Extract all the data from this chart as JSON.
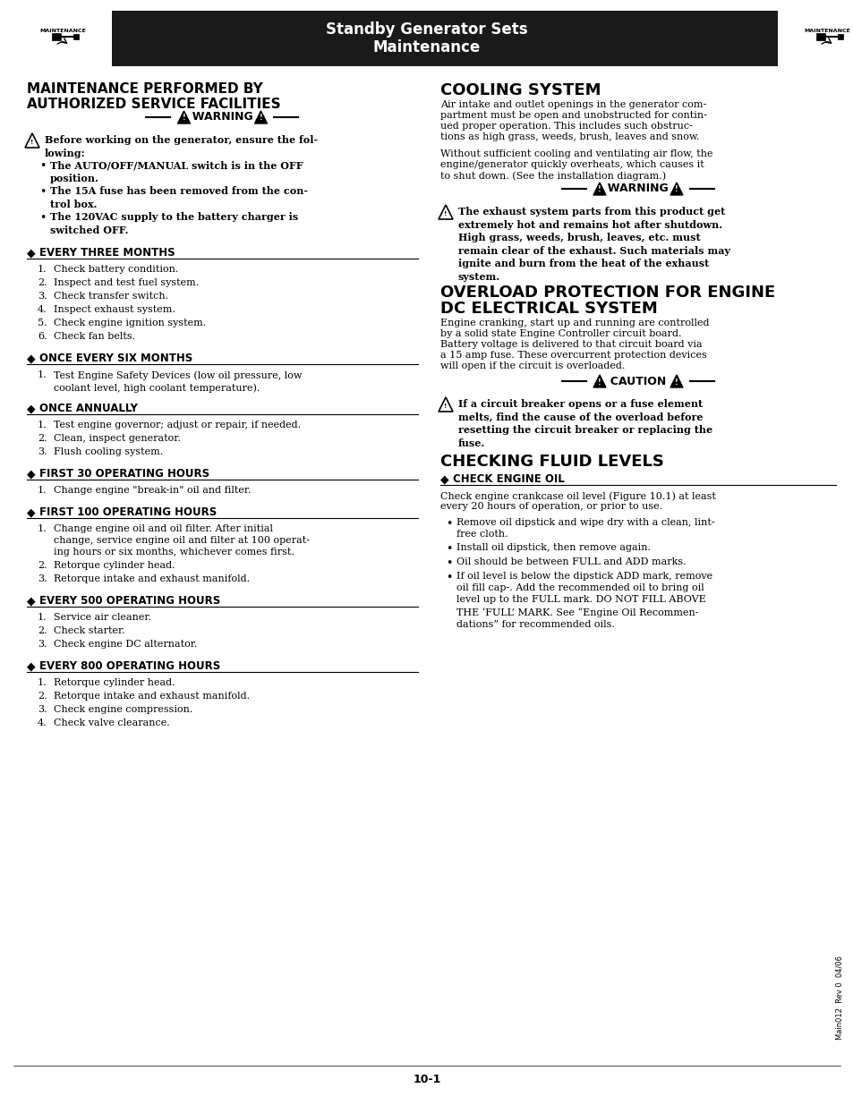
{
  "bg_color": "#ffffff",
  "header_bg": "#1a1a1a",
  "header_text_color": "#ffffff",
  "header_title1": "Standby Generator Sets",
  "header_title2": "Maintenance",
  "page_num": "10-1",
  "footer_right": "Main012  Rev 0  04/06",
  "warning_bullets": [
    "The AUTO/OFF/MANUAL switch is in the OFF\nposition.",
    "The 15A fuse has been removed from the con-\ntrol box.",
    "The 120VAC supply to the battery charger is\nswitched OFF."
  ],
  "sections_left": [
    {
      "title": "EVERY THREE MONTHS",
      "items": [
        "Check battery condition.",
        "Inspect and test fuel system.",
        "Check transfer switch.",
        "Inspect exhaust system.",
        "Check engine ignition system.",
        "Check fan belts."
      ]
    },
    {
      "title": "ONCE EVERY SIX MONTHS",
      "items": [
        "Test Engine Safety Devices (low oil pressure, low\ncoolant level, high coolant temperature)."
      ]
    },
    {
      "title": "ONCE ANNUALLY",
      "items": [
        "Test engine governor; adjust or repair, if needed.",
        "Clean, inspect generator.",
        "Flush cooling system."
      ]
    },
    {
      "title": "FIRST 30 OPERATING HOURS",
      "items": [
        "Change engine \"break-in\" oil and filter."
      ]
    },
    {
      "title": "FIRST 100 OPERATING HOURS",
      "items": [
        "Change engine oil and oil filter. After initial\nchange, service engine oil and filter at 100 operat-\ning hours or six months, whichever comes first.",
        "Retorque cylinder head.",
        "Retorque intake and exhaust manifold."
      ]
    },
    {
      "title": "EVERY 500 OPERATING HOURS",
      "items": [
        "Service air cleaner.",
        "Check starter.",
        "Check engine DC alternator."
      ]
    },
    {
      "title": "EVERY 800 OPERATING HOURS",
      "items": [
        "Retorque cylinder head.",
        "Retorque intake and exhaust manifold.",
        "Check engine compression.",
        "Check valve clearance."
      ]
    }
  ],
  "right_col_title1": "COOLING SYSTEM",
  "cooling_text": "Air intake and outlet openings in the generator com-\npartment must be open and unobstructed for contin-\nued proper operation. This includes such obstruc-\ntions as high grass, weeds, brush, leaves and snow.\n\nWithout sufficient cooling and ventilating air flow, the\nengine/generator quickly overheats, which causes it\nto shut down. (See the installation diagram.)",
  "warning2_text": "The exhaust system parts from this product get\nextremely hot and remains hot after shutdown.\nHigh grass, weeds, brush, leaves, etc. must\nremain clear of the exhaust. Such materials may\nignite and burn from the heat of the exhaust\nsystem.",
  "right_col_title2a": "OVERLOAD PROTECTION FOR ENGINE",
  "right_col_title2b": "DC ELECTRICAL SYSTEM",
  "overload_text": "Engine cranking, start up and running are controlled\nby a solid state Engine Controller circuit board.\nBattery voltage is delivered to that circuit board via\na 15 amp fuse. These overcurrent protection devices\nwill open if the circuit is overloaded.",
  "caution_text": "If a circuit breaker opens or a fuse element\nmelts, find the cause of the overload before\nresetting the circuit breaker or replacing the\nfuse.",
  "right_col_title3": "CHECKING FLUID LEVELS",
  "check_engine_oil_title": "CHECK ENGINE OIL",
  "check_engine_oil_intro": "Check engine crankcase oil level (Figure 10.1) at least\nevery 20 hours of operation, or prior to use.",
  "check_engine_oil_bullets": [
    "Remove oil dipstick and wipe dry with a clean, lint-\nfree cloth.",
    "Install oil dipstick, then remove again.",
    "Oil should be between FULL and ADD marks.",
    "If oil level is below the dipstick ADD mark, remove\noil fill cap-. Add the recommended oil to bring oil\nlevel up to the FULL mark. DO NOT FILL ABOVE\nTHE ‘FULL’ MARK. See “Engine Oil Recommen-\ndations” for recommended oils."
  ]
}
